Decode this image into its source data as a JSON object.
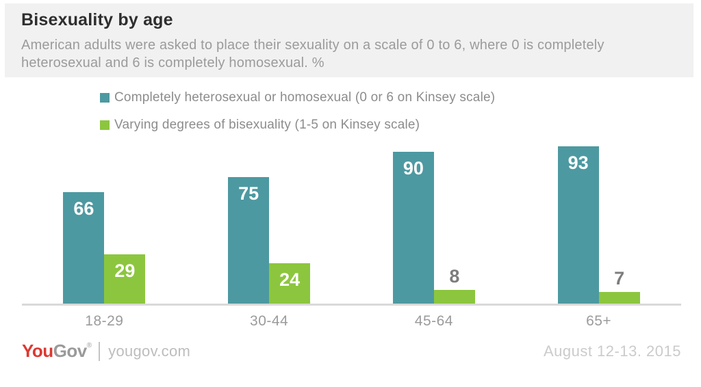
{
  "header": {
    "title": "Bisexuality by age",
    "subtitle": "American adults were asked to place their sexuality on a scale of 0 to 6, where 0 is completely heterosexual and 6 is completely homosexual. %"
  },
  "legend": [
    {
      "label": "Completely heterosexual or homosexual (0 or 6 on Kinsey scale)",
      "color": "#4d99a1"
    },
    {
      "label": "Varying degrees of bisexuality (1-5 on Kinsey scale)",
      "color": "#8cc63e"
    }
  ],
  "chart_data": {
    "type": "bar",
    "title": "Bisexuality by age",
    "subtitle": "American adults were asked to place their sexuality on a scale of 0 to 6, where 0 is completely heterosexual and 6 is completely homosexual. %",
    "unit": "%",
    "categories": [
      "18-29",
      "30-44",
      "45-64",
      "65+"
    ],
    "series": [
      {
        "name": "Completely heterosexual or homosexual (0 or 6 on Kinsey scale)",
        "color": "#4d99a1",
        "values": [
          66,
          75,
          90,
          93
        ]
      },
      {
        "name": "Varying degrees of bisexuality (1-5 on Kinsey scale)",
        "color": "#8cc63e",
        "values": [
          29,
          24,
          8,
          7
        ]
      }
    ],
    "ylim": [
      0,
      100
    ],
    "grid": false,
    "legend_position": "top-left",
    "value_labels": "shown on bars in white; small values (8, 7) shown in gray above bar",
    "xlabel": "",
    "ylabel": ""
  },
  "footer": {
    "brand_you": "You",
    "brand_gov": "Gov",
    "brand_mark": "®",
    "site": "yougov.com",
    "date": "August 12-13. 2015"
  },
  "colors": {
    "header_bg": "#f1f1f2",
    "teal": "#4d99a1",
    "green": "#8cc63e",
    "axis_line": "#d9d9d9",
    "brand_red": "#dc3932",
    "value_label_inside": "#ffffff",
    "value_label_outside": "#7d7d7d"
  }
}
